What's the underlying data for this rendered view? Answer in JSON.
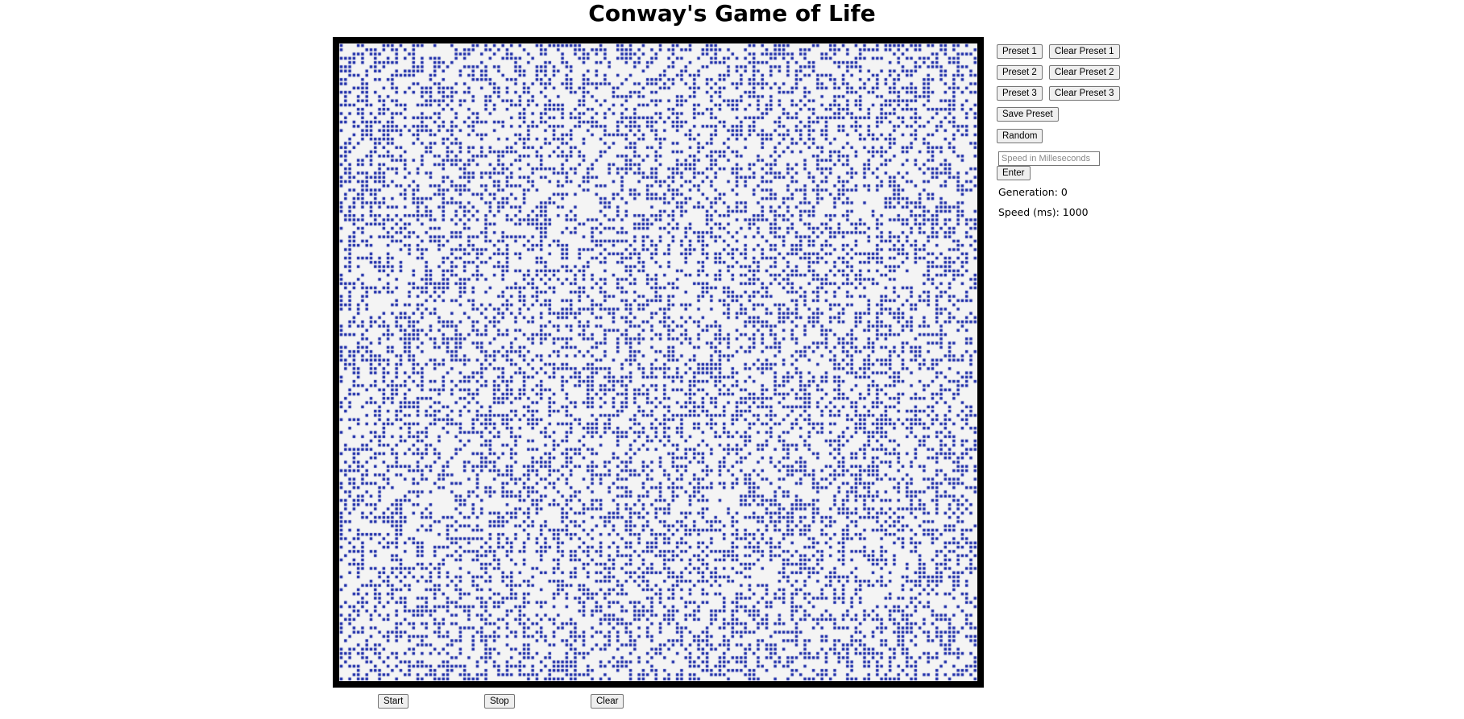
{
  "app": {
    "title": "Conway's Game of Life"
  },
  "board": {
    "columns": 150,
    "rows": 150,
    "live_cell_color": "#1a2aa8",
    "dead_cell_color": "#f4f4f4",
    "border_color": "#000000"
  },
  "presets": {
    "preset1_label": "Preset 1",
    "clear_preset1_label": "Clear Preset 1",
    "preset2_label": "Preset 2",
    "clear_preset2_label": "Clear Preset 2",
    "preset3_label": "Preset 3",
    "clear_preset3_label": "Clear Preset 3",
    "save_preset_label": "Save Preset",
    "random_label": "Random"
  },
  "speed": {
    "placeholder": "Speed in Milleseconds",
    "value": "",
    "enter_label": "Enter"
  },
  "stats": {
    "generation_text": "Generation: 0",
    "speed_text": "Speed (ms): 1000"
  },
  "controls": {
    "start_label": "Start",
    "stop_label": "Stop",
    "clear_label": "Clear"
  }
}
